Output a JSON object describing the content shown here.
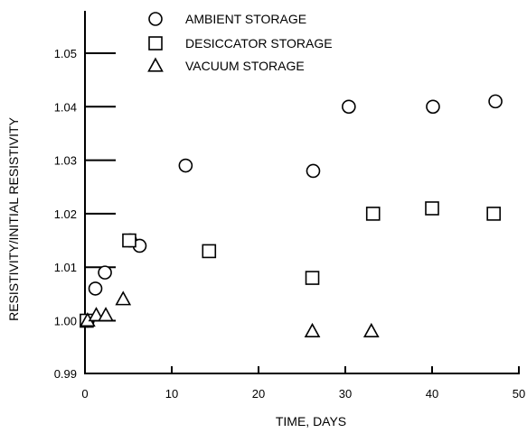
{
  "chart_data": {
    "type": "scatter",
    "xlabel": "TIME, DAYS",
    "ylabel": "RESISTIVITY/INITIAL RESISTIVITY",
    "xlim": [
      0,
      50
    ],
    "ylim": [
      0.99,
      1.06
    ],
    "xticks": [
      0,
      10,
      20,
      30,
      40,
      50
    ],
    "xtick_labels": [
      "0",
      "10",
      "20",
      "30",
      "40",
      "50"
    ],
    "yticks": [
      0.99,
      1.0,
      1.01,
      1.02,
      1.03,
      1.04,
      1.05
    ],
    "ytick_labels": [
      "0.99",
      "1.00",
      "1.01",
      "1.02",
      "1.03",
      "1.04",
      "1.05"
    ],
    "grid": false,
    "legend_position": "top-left",
    "color": "#000000",
    "series": [
      {
        "name": "AMBIENT STORAGE",
        "marker": "circle",
        "points": [
          {
            "x": 0.3,
            "y": 1.0
          },
          {
            "x": 1.2,
            "y": 1.006
          },
          {
            "x": 2.3,
            "y": 1.009
          },
          {
            "x": 5.2,
            "y": 1.015
          },
          {
            "x": 6.3,
            "y": 1.014
          },
          {
            "x": 11.6,
            "y": 1.029
          },
          {
            "x": 26.3,
            "y": 1.028
          },
          {
            "x": 30.4,
            "y": 1.04
          },
          {
            "x": 40.1,
            "y": 1.04
          },
          {
            "x": 47.3,
            "y": 1.041
          }
        ]
      },
      {
        "name": "DESICCATOR STORAGE",
        "marker": "square",
        "points": [
          {
            "x": 0.2,
            "y": 1.0
          },
          {
            "x": 5.1,
            "y": 1.015
          },
          {
            "x": 14.3,
            "y": 1.013
          },
          {
            "x": 26.2,
            "y": 1.008
          },
          {
            "x": 33.2,
            "y": 1.02
          },
          {
            "x": 40.0,
            "y": 1.021
          },
          {
            "x": 47.1,
            "y": 1.02
          }
        ]
      },
      {
        "name": "VACUUM STORAGE",
        "marker": "triangle",
        "points": [
          {
            "x": 0.3,
            "y": 1.0
          },
          {
            "x": 1.3,
            "y": 1.001
          },
          {
            "x": 2.4,
            "y": 1.001
          },
          {
            "x": 4.4,
            "y": 1.004
          },
          {
            "x": 26.2,
            "y": 0.998
          },
          {
            "x": 33.0,
            "y": 0.998
          }
        ]
      }
    ]
  }
}
